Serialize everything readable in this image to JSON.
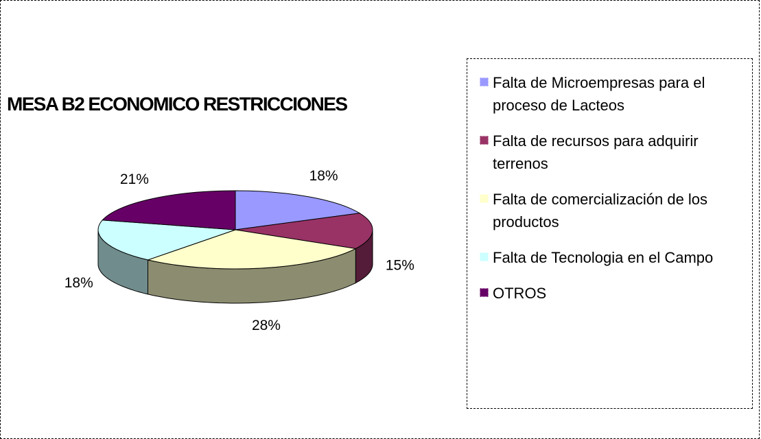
{
  "chart_data": {
    "type": "pie",
    "title": "MESA B2 ECONOMICO RESTRICCIONES",
    "categories": [
      "Falta de Microempresas para el proceso de Lacteos",
      "Falta de recursos para adquirir terrenos",
      "Falta de comercialización de los productos",
      "Falta de Tecnologia en el Campo",
      "OTROS"
    ],
    "values": [
      18,
      15,
      28,
      18,
      21
    ],
    "value_labels": [
      "18%",
      "15%",
      "28%",
      "18%",
      "21%"
    ],
    "colors": [
      "#9999ff",
      "#993366",
      "#ffffcc",
      "#ccffff",
      "#660066"
    ],
    "legend": "right"
  }
}
